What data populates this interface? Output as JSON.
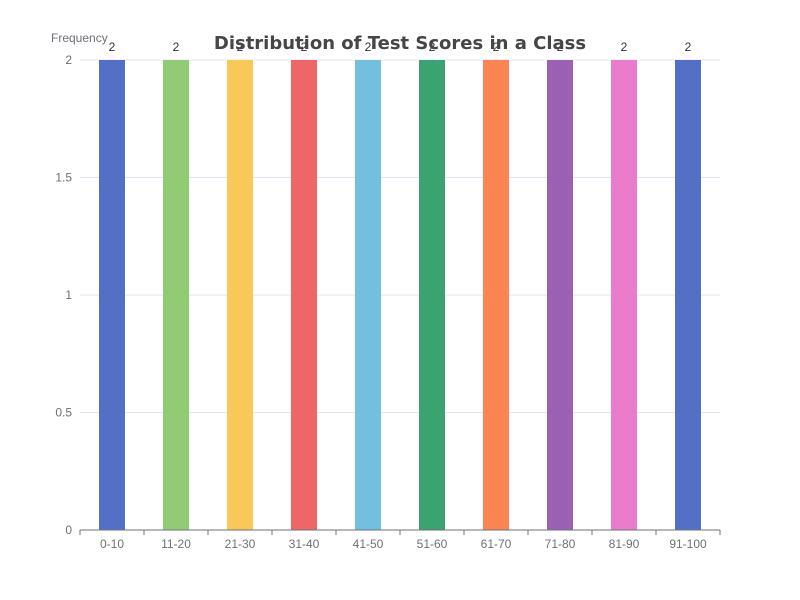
{
  "chart_data": {
    "type": "bar",
    "title": "Distribution of Test Scores in a Class",
    "xlabel": "",
    "ylabel": "Frequency",
    "categories": [
      "0-10",
      "11-20",
      "21-30",
      "31-40",
      "41-50",
      "51-60",
      "61-70",
      "71-80",
      "81-90",
      "91-100"
    ],
    "values": [
      2,
      2,
      2,
      2,
      2,
      2,
      2,
      2,
      2,
      2
    ],
    "ylim": [
      0,
      2
    ],
    "yticks": [
      "0",
      "0.5",
      "1",
      "1.5",
      "2"
    ],
    "grid": true,
    "legend": "none",
    "data_labels": true,
    "colors": [
      "#5470c6",
      "#91cc75",
      "#fac858",
      "#ee6666",
      "#73c0de",
      "#3ba272",
      "#fc8452",
      "#9a60b4",
      "#ea7ccc",
      "#5470c6"
    ]
  }
}
